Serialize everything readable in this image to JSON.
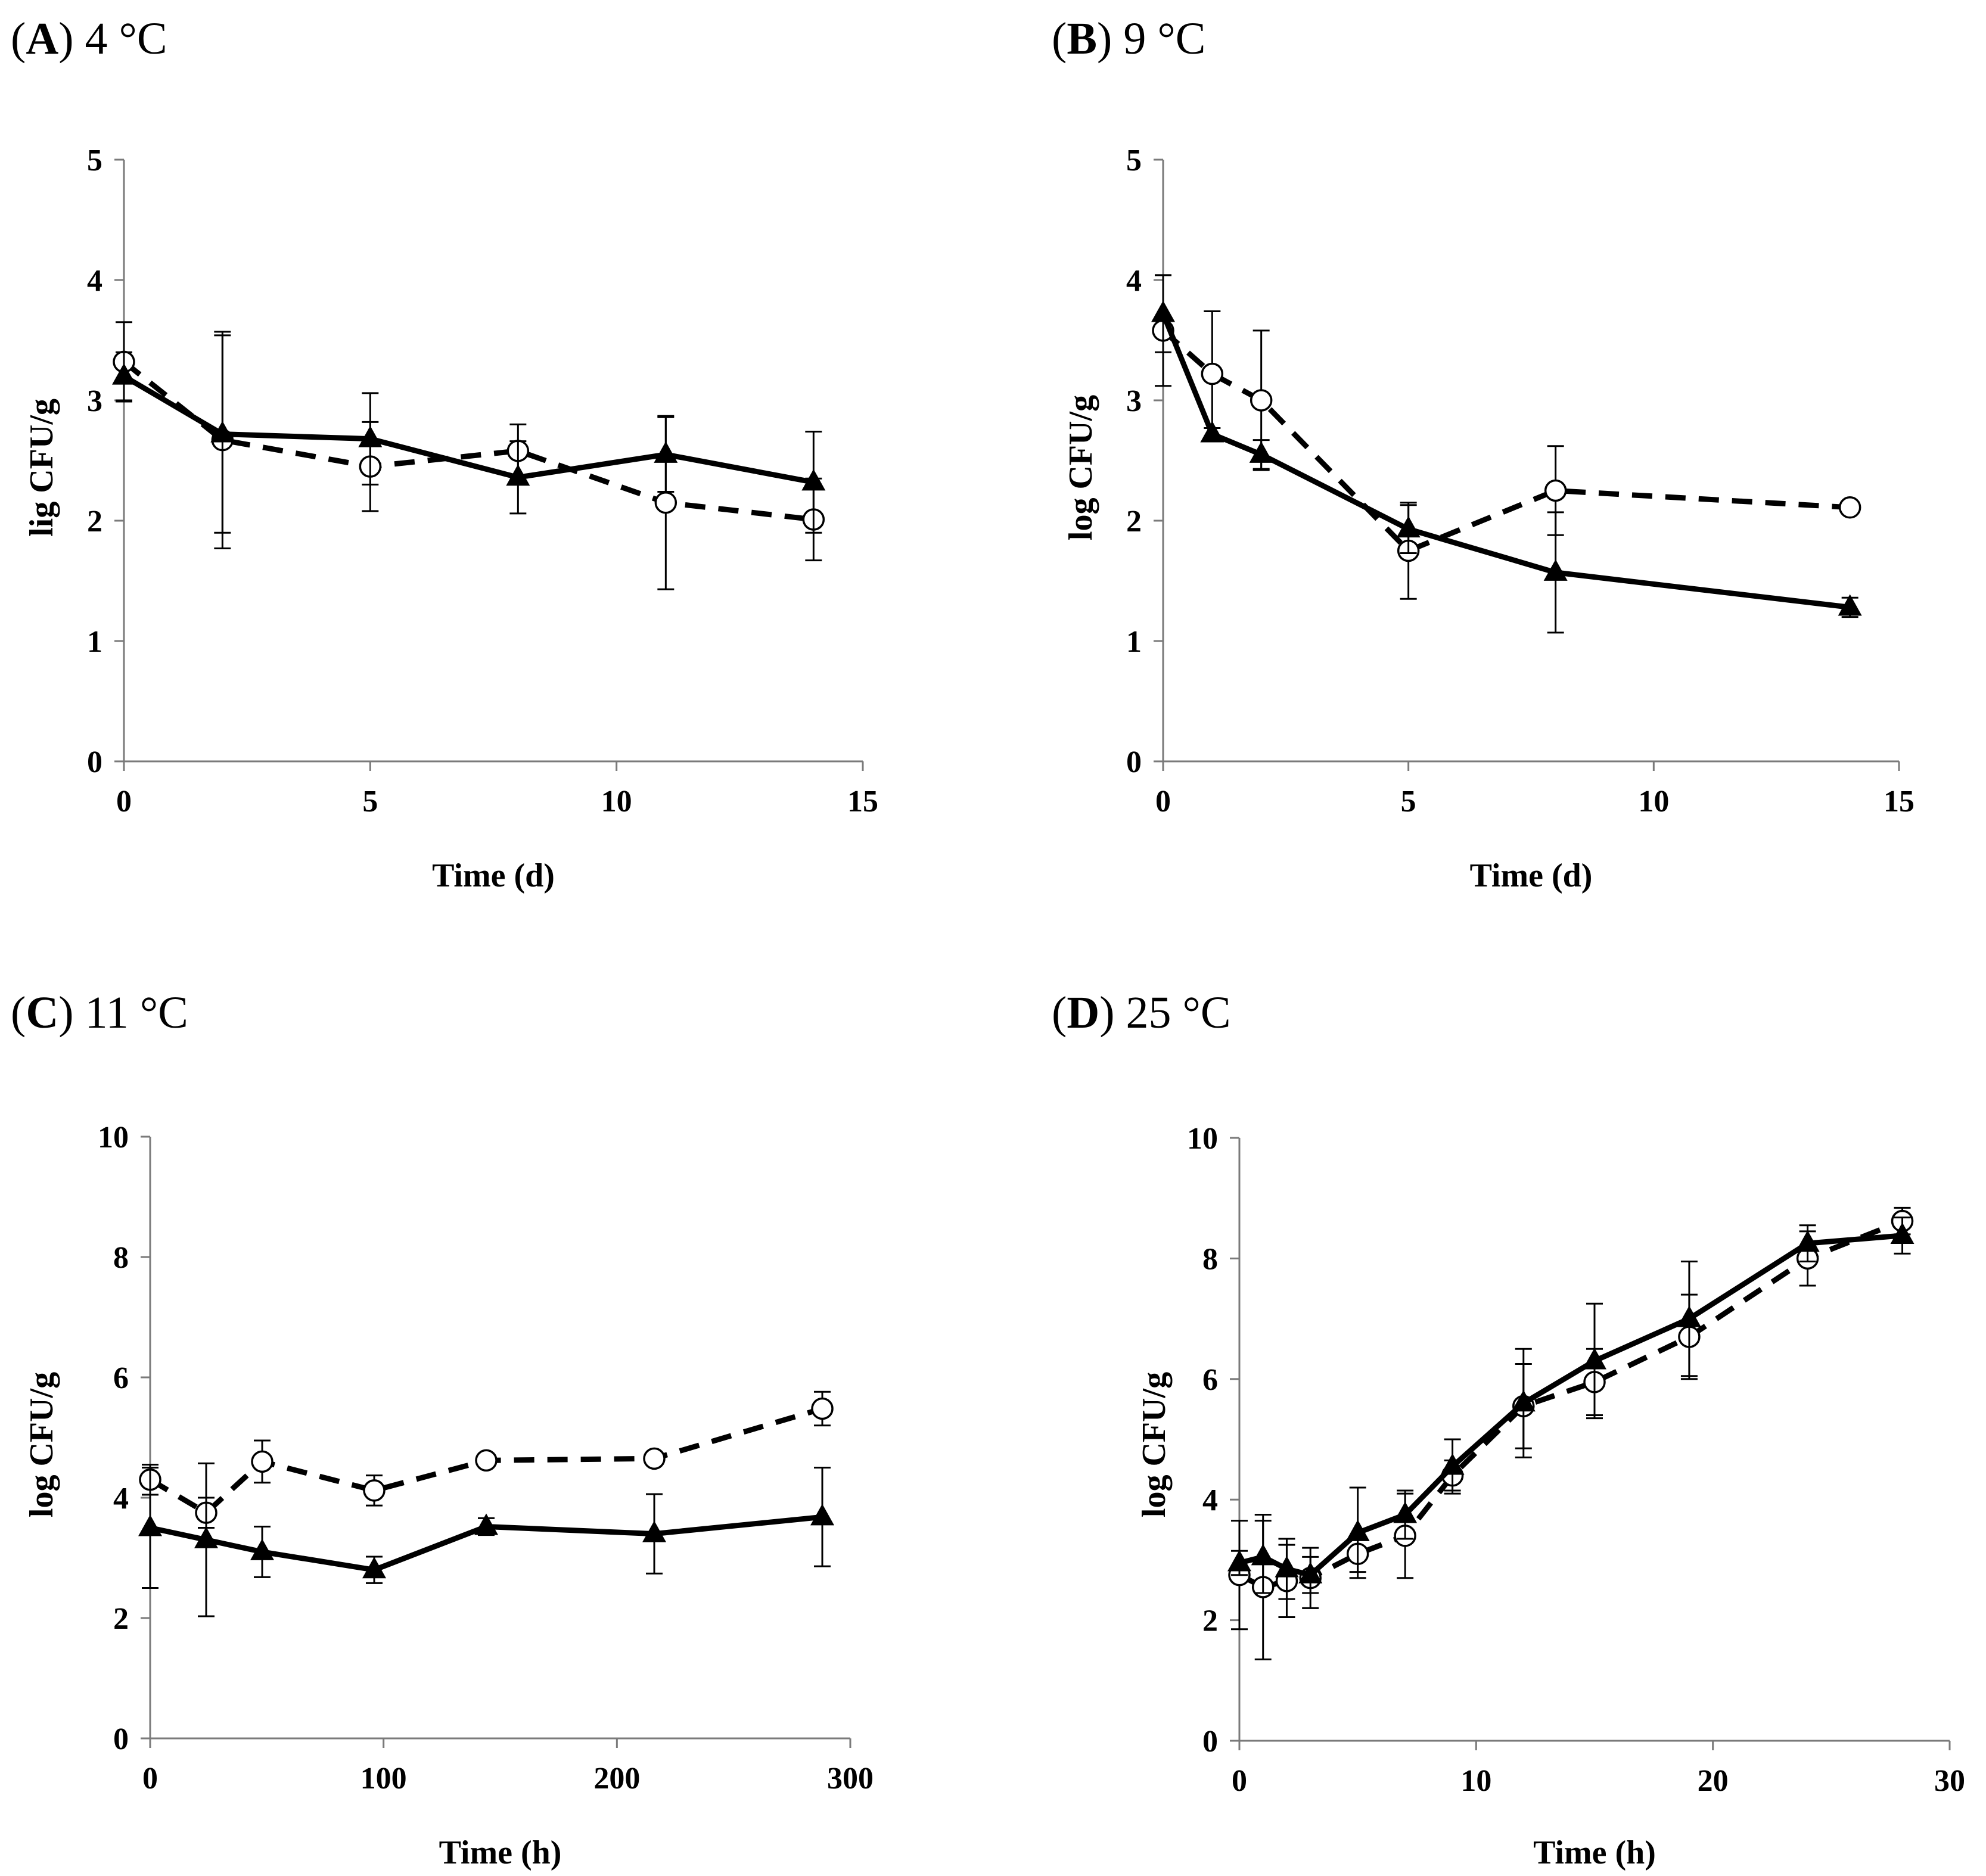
{
  "chart_data": [
    {
      "type": "line",
      "title_letter": "A",
      "title_text": "4 °C",
      "xlabel": "Time (d)",
      "ylabel": "lig CFU/g",
      "xlim": [
        0,
        15
      ],
      "ylim": [
        0,
        5
      ],
      "xticks": [
        0,
        5,
        10,
        15
      ],
      "yticks": [
        0,
        1,
        2,
        3,
        4,
        5
      ],
      "series": [
        {
          "name": "dashed open circles",
          "marker": "circle",
          "line": "dashed",
          "x": [
            0,
            2,
            5,
            8,
            11,
            14
          ],
          "y": [
            3.32,
            2.67,
            2.45,
            2.58,
            2.15,
            2.01
          ],
          "err": [
            0.33,
            0.9,
            0.37,
            0.22,
            0.72,
            0.34
          ]
        },
        {
          "name": "solid filled triangles",
          "marker": "triangle",
          "line": "solid",
          "x": [
            0,
            2,
            5,
            8,
            11,
            14
          ],
          "y": [
            3.2,
            2.72,
            2.68,
            2.36,
            2.55,
            2.32
          ],
          "err": [
            0.2,
            0.82,
            0.38,
            0.3,
            0.31,
            0.42
          ]
        }
      ]
    },
    {
      "type": "line",
      "title_letter": "B",
      "title_text": "9 °C",
      "xlabel": "Time (d)",
      "ylabel": "log CFU/g",
      "xlim": [
        0,
        15
      ],
      "ylim": [
        0,
        5
      ],
      "xticks": [
        0,
        5,
        10,
        15
      ],
      "yticks": [
        0,
        1,
        2,
        3,
        4,
        5
      ],
      "series": [
        {
          "name": "dashed open circles",
          "marker": "circle",
          "line": "dashed",
          "x": [
            0,
            1,
            2,
            5,
            8,
            14
          ],
          "y": [
            3.58,
            3.22,
            3.0,
            1.75,
            2.25,
            2.11
          ],
          "err": [
            0.46,
            0.52,
            0.58,
            0.4,
            0.37,
            0.0
          ]
        },
        {
          "name": "solid filled triangles",
          "marker": "triangle",
          "line": "solid",
          "x": [
            0,
            1,
            2,
            5,
            8,
            14
          ],
          "y": [
            3.72,
            2.72,
            2.55,
            1.93,
            1.57,
            1.28
          ],
          "err": [
            0.32,
            0.05,
            0.12,
            0.2,
            0.5,
            0.08
          ]
        }
      ]
    },
    {
      "type": "line",
      "title_letter": "C",
      "title_text": "11 °C",
      "xlabel": "Time (h)",
      "ylabel": "log CFU/g",
      "xlim": [
        0,
        300
      ],
      "ylim": [
        0,
        10
      ],
      "xticks": [
        0,
        100,
        200,
        300
      ],
      "yticks": [
        0,
        2,
        4,
        6,
        8,
        10
      ],
      "series": [
        {
          "name": "dashed open circles",
          "marker": "circle",
          "line": "dashed",
          "x": [
            0,
            24,
            48,
            96,
            144,
            216,
            288
          ],
          "y": [
            4.3,
            3.75,
            4.6,
            4.12,
            4.62,
            4.65,
            5.48
          ],
          "err": [
            0.25,
            0.25,
            0.35,
            0.25,
            0.1,
            0.1,
            0.28
          ]
        },
        {
          "name": "solid filled triangles",
          "marker": "triangle",
          "line": "solid",
          "x": [
            0,
            24,
            48,
            96,
            144,
            216,
            288
          ],
          "y": [
            3.5,
            3.3,
            3.1,
            2.8,
            3.52,
            3.4,
            3.68
          ],
          "err": [
            1.0,
            1.27,
            0.42,
            0.22,
            0.14,
            0.66,
            0.82
          ]
        }
      ]
    },
    {
      "type": "line",
      "title_letter": "D",
      "title_text": "25 °C",
      "xlabel": "Time (h)",
      "ylabel": "log CFU/g",
      "xlim": [
        0,
        30
      ],
      "ylim": [
        0,
        10
      ],
      "xticks": [
        0,
        10,
        20,
        30
      ],
      "yticks": [
        0,
        2,
        4,
        6,
        8,
        10
      ],
      "series": [
        {
          "name": "dashed open circles",
          "marker": "circle",
          "line": "dashed",
          "x": [
            0,
            1,
            2,
            3,
            5,
            7,
            9,
            12,
            15,
            19,
            24,
            28
          ],
          "y": [
            2.75,
            2.55,
            2.65,
            2.7,
            3.1,
            3.4,
            4.4,
            5.55,
            5.95,
            6.7,
            8.0,
            8.62
          ],
          "err": [
            0.9,
            1.2,
            0.6,
            0.5,
            0.3,
            0.7,
            0.25,
            0.7,
            0.55,
            0.7,
            0.45,
            0.22
          ]
        },
        {
          "name": "solid filled triangles",
          "marker": "triangle",
          "line": "solid",
          "x": [
            0,
            1,
            2,
            3,
            5,
            7,
            9,
            12,
            15,
            19,
            24,
            28
          ],
          "y": [
            2.95,
            3.05,
            2.85,
            2.75,
            3.45,
            3.75,
            4.55,
            5.6,
            6.3,
            7.0,
            8.25,
            8.38
          ],
          "err": [
            0.2,
            0.6,
            0.5,
            0.3,
            0.75,
            0.4,
            0.45,
            0.9,
            0.95,
            0.95,
            0.3,
            0.3
          ]
        }
      ]
    }
  ]
}
